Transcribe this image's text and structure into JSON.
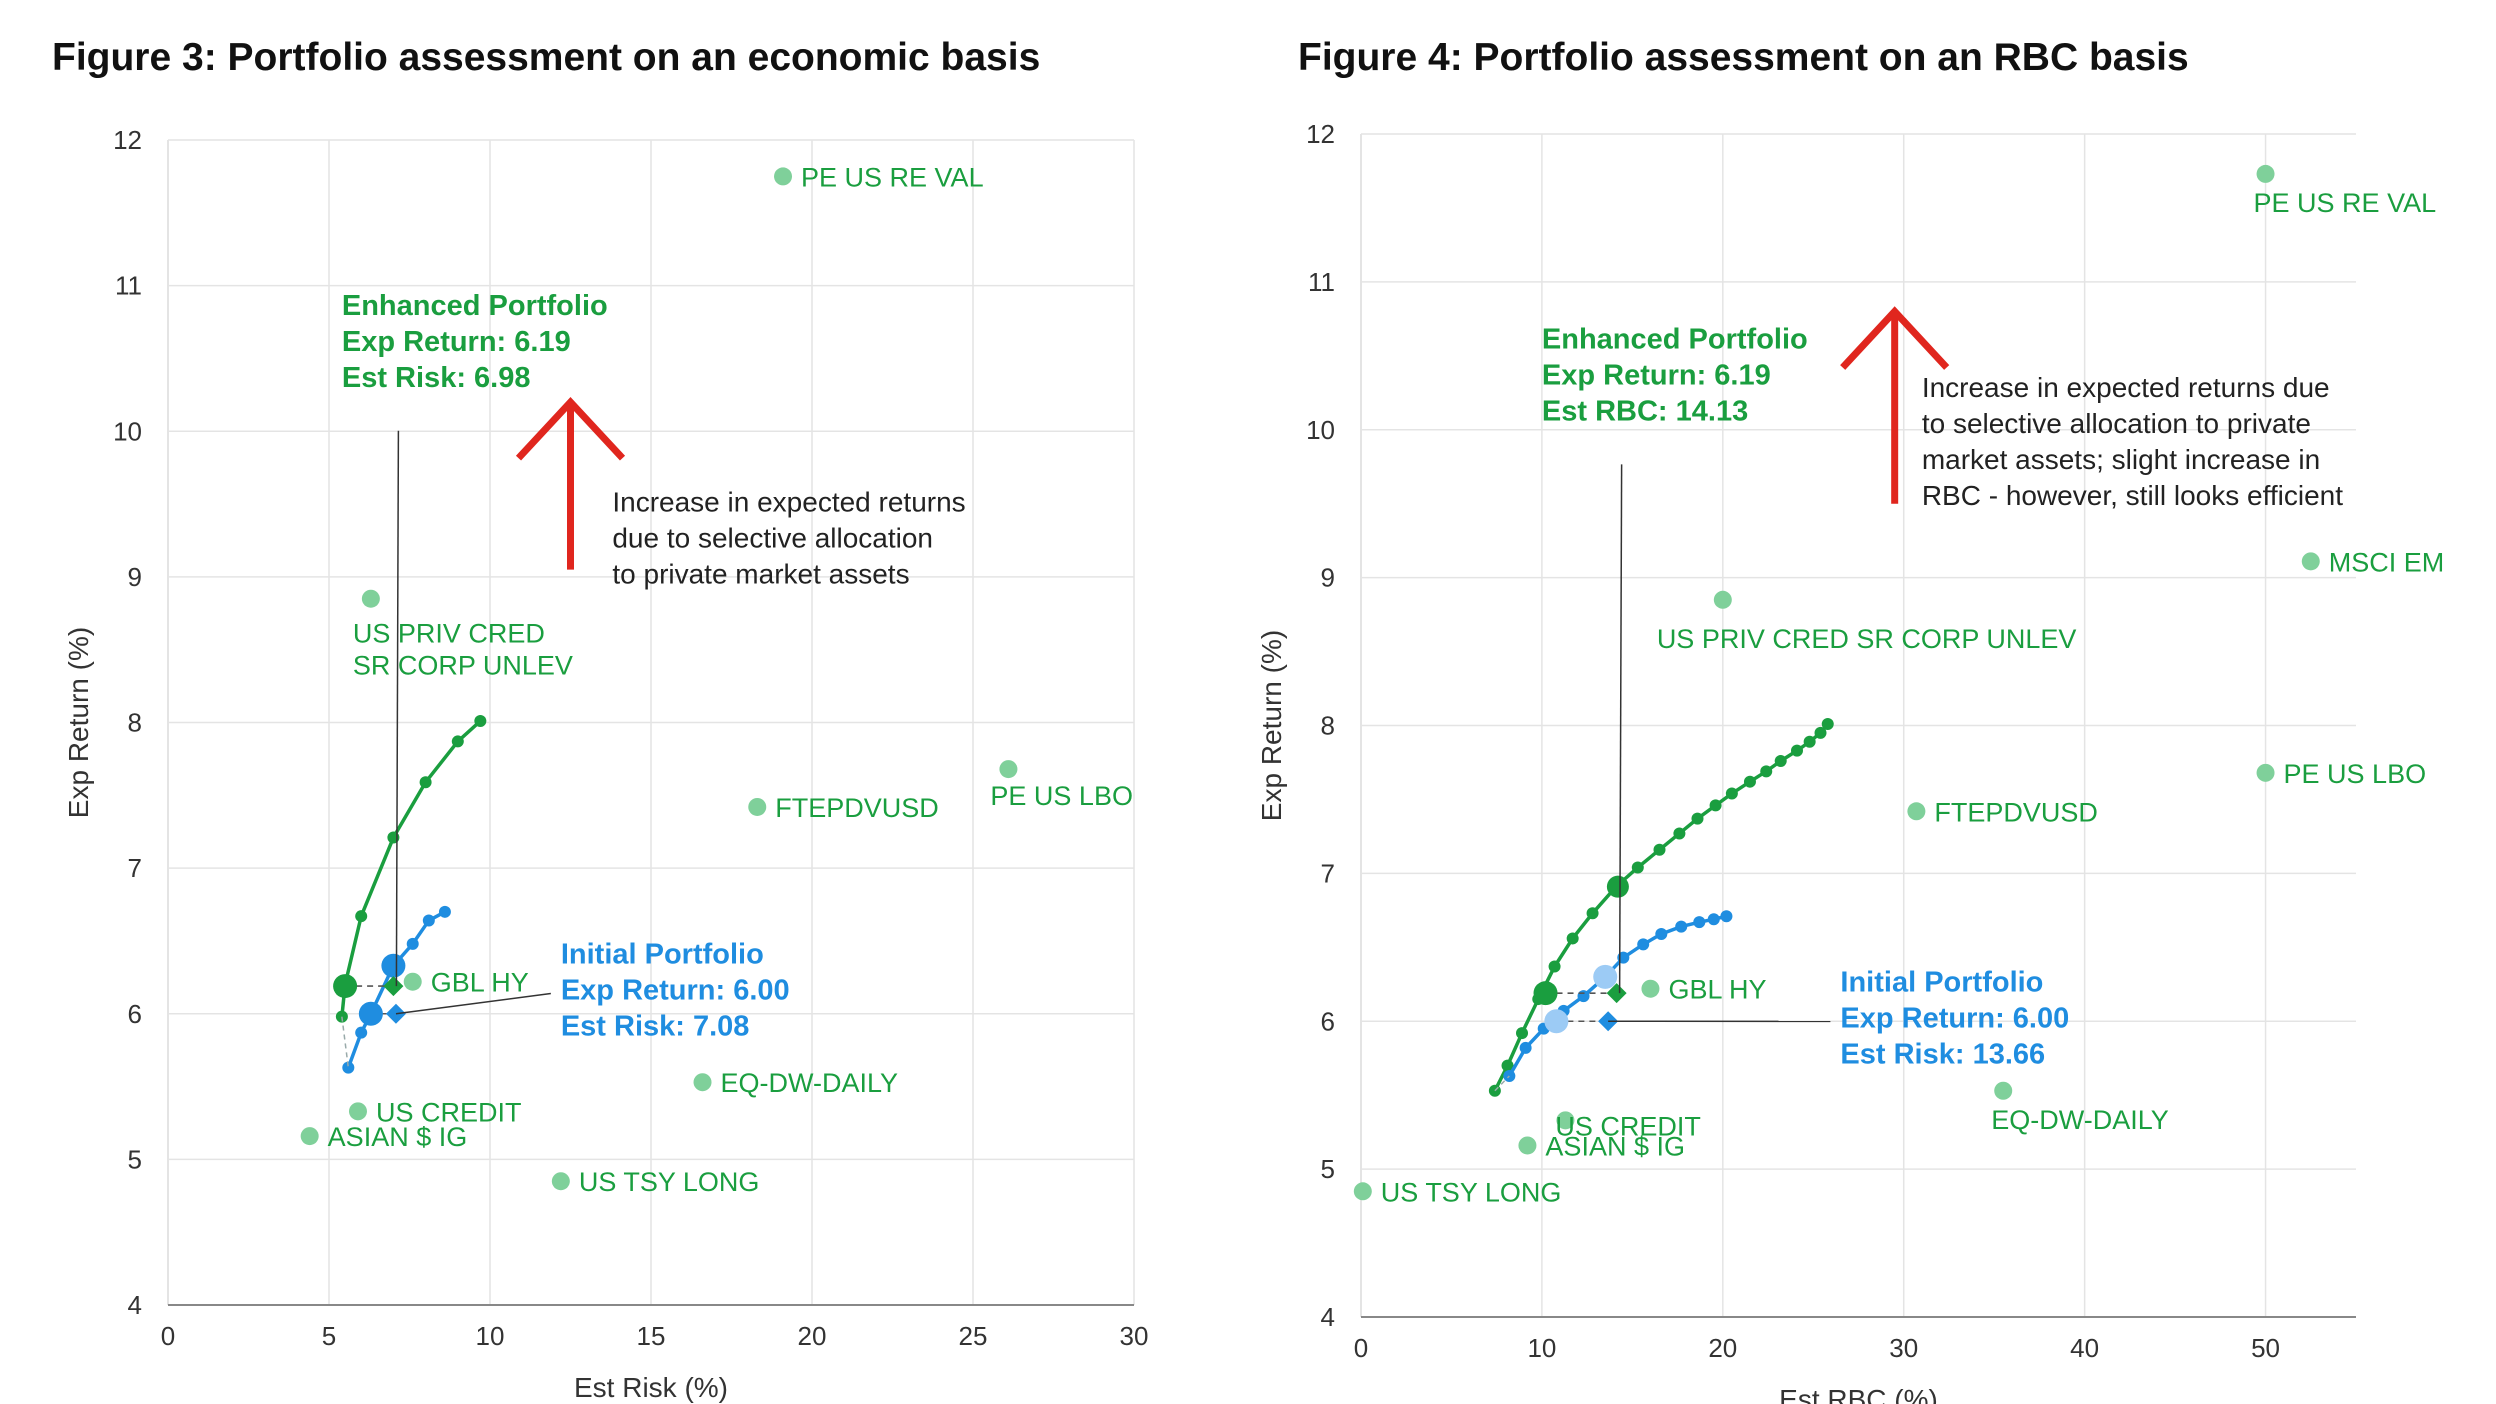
{
  "colors": {
    "green": "#1a9e3f",
    "green_light": "#7fd09a",
    "blue": "#1f8de0",
    "blue_light": "#9ccbf5",
    "red": "#e0261e",
    "grid": "#e4e4e4",
    "axis": "#888888",
    "text": "#333333"
  },
  "chart_data": [
    {
      "type": "scatter",
      "title": "Figure 3: Portfolio assessment on an economic basis",
      "xlabel": "Est Risk (%)",
      "ylabel": "Exp Return (%)",
      "xlim": [
        0,
        30
      ],
      "ylim": [
        4,
        12
      ],
      "xticks": [
        0,
        5,
        10,
        15,
        20,
        25,
        30
      ],
      "yticks": [
        4,
        5,
        6,
        7,
        8,
        9,
        10,
        11,
        12
      ],
      "grid": true,
      "assets": [
        {
          "name": "PE US RE VAL",
          "x": 19.1,
          "y": 11.75,
          "label_pos": "right"
        },
        {
          "name": "US PRIV CRED\nSR CORP UNLEV",
          "x": 6.3,
          "y": 8.85,
          "label_pos": "below"
        },
        {
          "name": "FTEPDVUSD",
          "x": 18.3,
          "y": 7.42,
          "label_pos": "right"
        },
        {
          "name": "PE US LBO",
          "x": 26.1,
          "y": 7.68,
          "label_pos": "below-left"
        },
        {
          "name": "GBL HY",
          "x": 7.6,
          "y": 6.22,
          "label_pos": "right"
        },
        {
          "name": "EQ-DW-DAILY",
          "x": 16.6,
          "y": 5.53,
          "label_pos": "right"
        },
        {
          "name": "US CREDIT",
          "x": 5.9,
          "y": 5.33,
          "label_pos": "right"
        },
        {
          "name": "ASIAN $ IG",
          "x": 4.4,
          "y": 5.16,
          "label_pos": "right"
        },
        {
          "name": "US TSY LONG",
          "x": 12.2,
          "y": 4.85,
          "label_pos": "right"
        }
      ],
      "series": [
        {
          "name": "",
          "color_key": "green",
          "points": [
            [
              5.4,
              5.98
            ],
            [
              5.5,
              6.2
            ],
            [
              6.0,
              6.67
            ],
            [
              7.0,
              7.21
            ],
            [
              8.0,
              7.59
            ],
            [
              9.0,
              7.87
            ],
            [
              9.7,
              8.01
            ]
          ]
        },
        {
          "name": "",
          "color_key": "blue",
          "points": [
            [
              5.6,
              5.63
            ],
            [
              6.0,
              5.87
            ],
            [
              6.3,
              6.0
            ],
            [
              7.0,
              6.33
            ],
            [
              7.6,
              6.48
            ],
            [
              8.1,
              6.64
            ],
            [
              8.6,
              6.7
            ]
          ]
        }
      ],
      "enhanced": {
        "x": 5.5,
        "y": 6.19,
        "marker_x": 7.0,
        "marker_y": 6.19,
        "label_x": 5.4,
        "label_y": 10.8
      },
      "initial": {
        "x": 6.3,
        "y": 6.0,
        "marker_x": 7.08,
        "marker_y": 6.0,
        "label_x": 12.2,
        "label_y": 6.18
      },
      "blue_big": {
        "x": 7.0,
        "y": 6.33
      },
      "enhanced_label": [
        "Enhanced Portfolio",
        "Exp Return: 6.19",
        "Est Risk: 6.98"
      ],
      "initial_label": [
        "Initial Portfolio",
        "Exp Return: 6.00",
        "Est Risk: 7.08"
      ],
      "arrow": {
        "x": 12.5,
        "y_base": 9.05,
        "y_tip": 10.2
      },
      "annotation": {
        "x": 13.8,
        "y": 9.45,
        "lines": [
          "Increase in expected returns",
          "due to selective allocation",
          "to private market assets"
        ]
      }
    },
    {
      "type": "scatter",
      "title": "Figure 4: Portfolio assessment on an RBC basis",
      "xlabel": "Est RBC (%)",
      "ylabel": "Exp Return (%)",
      "xlim": [
        0,
        55
      ],
      "ylim": [
        4,
        12
      ],
      "xticks": [
        0,
        10,
        20,
        30,
        40,
        50
      ],
      "yticks": [
        4,
        5,
        6,
        7,
        8,
        9,
        10,
        11,
        12
      ],
      "grid": true,
      "assets": [
        {
          "name": "PE US RE VAL",
          "x": 50.0,
          "y": 11.73,
          "label_pos": "below"
        },
        {
          "name": "MSCI EM",
          "x": 52.5,
          "y": 9.11,
          "label_pos": "right"
        },
        {
          "name": "US PRIV CRED SR CORP UNLEV",
          "x": 20.0,
          "y": 8.85,
          "label_pos": "below"
        },
        {
          "name": "PE US LBO",
          "x": 50.0,
          "y": 7.68,
          "label_pos": "right"
        },
        {
          "name": "FTEPDVUSD",
          "x": 30.7,
          "y": 7.42,
          "label_pos": "right"
        },
        {
          "name": "GBL HY",
          "x": 16.0,
          "y": 6.22,
          "label_pos": "right"
        },
        {
          "name": "EQ-DW-DAILY",
          "x": 35.5,
          "y": 5.53,
          "label_pos": "below"
        },
        {
          "name": "US CREDIT",
          "x": 11.3,
          "y": 5.33,
          "label_pos": "above"
        },
        {
          "name": "ASIAN $ IG",
          "x": 9.2,
          "y": 5.16,
          "label_pos": "right"
        },
        {
          "name": "US TSY LONG",
          "x": 0.1,
          "y": 4.85,
          "label_pos": "right"
        }
      ],
      "series": [
        {
          "name": "",
          "color_key": "green",
          "points": [
            [
              7.4,
              5.53
            ],
            [
              8.1,
              5.7
            ],
            [
              8.9,
              5.92
            ],
            [
              9.8,
              6.15
            ],
            [
              10.7,
              6.37
            ],
            [
              11.7,
              6.56
            ],
            [
              12.8,
              6.73
            ],
            [
              14.1,
              6.91
            ],
            [
              15.3,
              7.04
            ],
            [
              16.5,
              7.16
            ],
            [
              17.6,
              7.27
            ],
            [
              18.6,
              7.37
            ],
            [
              19.6,
              7.46
            ],
            [
              20.5,
              7.54
            ],
            [
              21.5,
              7.62
            ],
            [
              22.4,
              7.69
            ],
            [
              23.2,
              7.76
            ],
            [
              24.1,
              7.83
            ],
            [
              24.8,
              7.89
            ],
            [
              25.4,
              7.95
            ],
            [
              25.8,
              8.01
            ]
          ]
        },
        {
          "name": "",
          "color_key": "blue",
          "points": [
            [
              8.2,
              5.63
            ],
            [
              9.1,
              5.82
            ],
            [
              10.1,
              5.95
            ],
            [
              11.2,
              6.07
            ],
            [
              12.3,
              6.17
            ],
            [
              13.5,
              6.3
            ],
            [
              14.5,
              6.43
            ],
            [
              15.6,
              6.52
            ],
            [
              16.6,
              6.59
            ],
            [
              17.7,
              6.64
            ],
            [
              18.7,
              6.67
            ],
            [
              19.5,
              6.69
            ],
            [
              20.2,
              6.71
            ]
          ]
        }
      ],
      "enhanced": {
        "x": 10.2,
        "y": 6.19,
        "marker_x": 14.13,
        "marker_y": 6.19,
        "label_x": 10.0,
        "label_y": 10.55
      },
      "initial": {
        "x": 10.8,
        "y": 6.0,
        "marker_x": 13.66,
        "marker_y": 6.0,
        "label_x": 26.5,
        "label_y": 6.04
      },
      "blue_big": {
        "x": 13.5,
        "y": 6.3
      },
      "green_big": {
        "x": 14.2,
        "y": 6.91
      },
      "enhanced_label": [
        "Enhanced Portfolio",
        "Exp Return: 6.19",
        "Est RBC: 14.13"
      ],
      "initial_label": [
        "Initial Portfolio",
        "Exp Return: 6.00",
        "Est Risk: 13.66"
      ],
      "arrow": {
        "x": 29.5,
        "y_base": 9.5,
        "y_tip": 10.8
      },
      "annotation": {
        "x": 31.0,
        "y": 10.22,
        "lines": [
          "Increase in expected returns due",
          "to selective allocation to private",
          "market assets; slight increase in",
          "RBC - however, still looks efficient"
        ]
      }
    }
  ]
}
